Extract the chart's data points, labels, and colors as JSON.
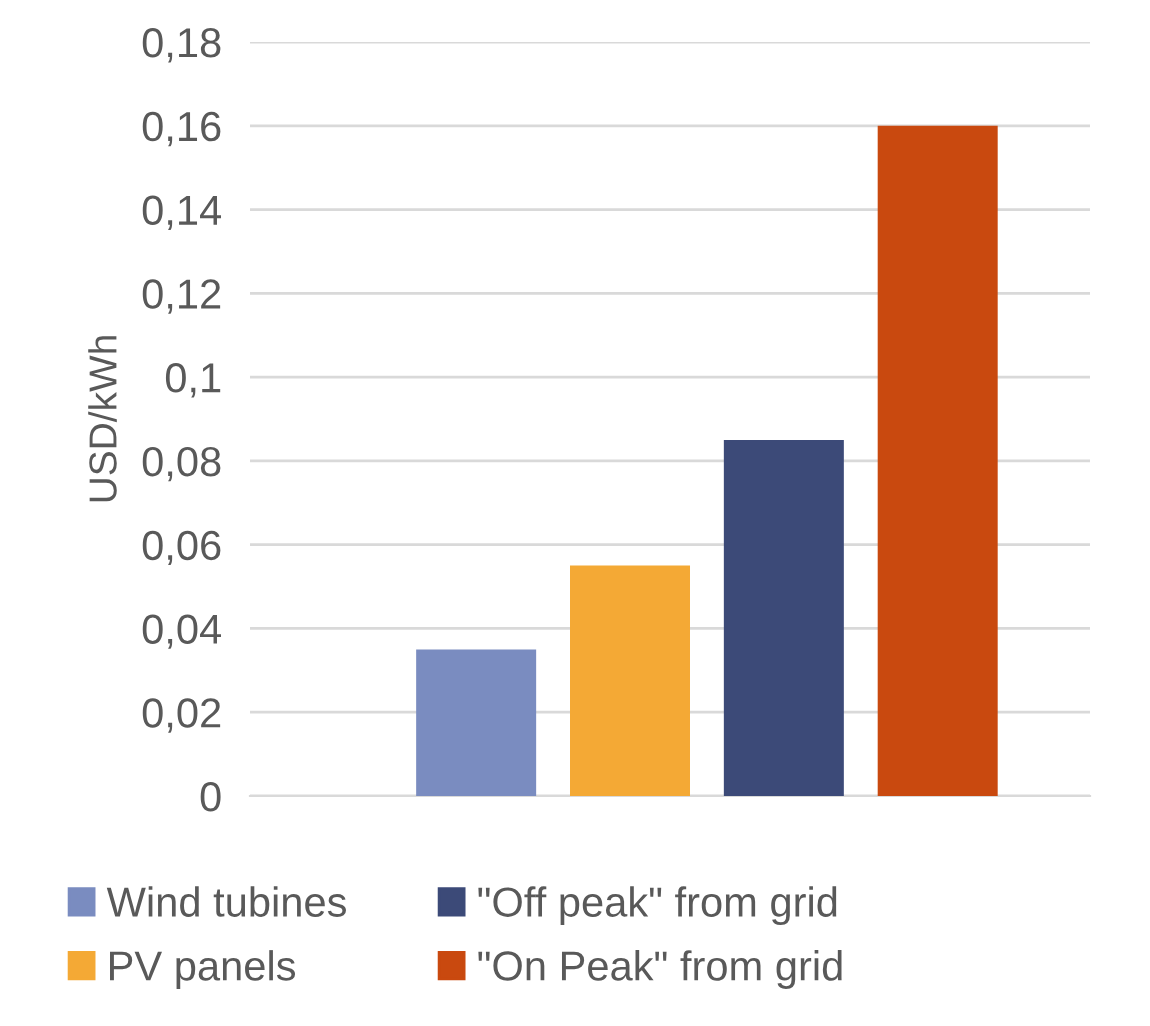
{
  "chart_data": {
    "type": "bar",
    "ylabel": "USD/kWh",
    "categories": [
      null,
      null,
      null,
      null
    ],
    "series": [
      {
        "name": "Wind tubines",
        "color": "#7a8cc0",
        "values": [
          0.035,
          null,
          null,
          null
        ]
      },
      {
        "name": "PV panels",
        "color": "#f4a935",
        "values": [
          null,
          0.055,
          null,
          null
        ]
      },
      {
        "name": "\"Off peak\" from grid",
        "color": "#3c4a78",
        "values": [
          null,
          null,
          0.085,
          null
        ]
      },
      {
        "name": "\"On Peak\" from grid",
        "color": "#c9490f",
        "values": [
          null,
          null,
          null,
          0.16
        ]
      }
    ],
    "ylim": [
      0,
      0.18
    ],
    "yticks": [
      {
        "value": 0,
        "label": "0"
      },
      {
        "value": 0.02,
        "label": "0,02"
      },
      {
        "value": 0.04,
        "label": "0,04"
      },
      {
        "value": 0.06,
        "label": "0,06"
      },
      {
        "value": 0.08,
        "label": "0,08"
      },
      {
        "value": 0.1,
        "label": "0,1"
      },
      {
        "value": 0.12,
        "label": "0,12"
      },
      {
        "value": 0.14,
        "label": "0,14"
      },
      {
        "value": 0.16,
        "label": "0,16"
      },
      {
        "value": 0.18,
        "label": "0,18"
      }
    ],
    "grid": "y",
    "legend": "bottom",
    "stacked": true
  }
}
